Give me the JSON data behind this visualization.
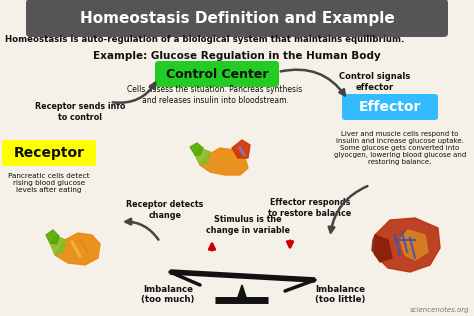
{
  "title": "Homeostasis Definition and Example",
  "title_bg": "#555555",
  "title_color": "#ffffff",
  "bg_color": "#f5f0e8",
  "subtitle": "Homeostasis is auto-regulation of a biological system that maintains equilibrium.",
  "example_title": "Example: Glucose Regulation in the Human Body",
  "control_center_label": "Control Center",
  "control_center_bg": "#22cc22",
  "control_center_text": "Cells assess the situation. Pancreas synthesis\nand releases insulin into bloodstream.",
  "control_signals_text": "Control signals\neffector",
  "effector_label": "Effector",
  "effector_bg": "#33bbff",
  "effector_text": "Liver and muscle cells respond to\ninsulin and increase glucose uptake.\nSome glucose gets converted into\nglyocgen, lowering blood glucose and\nrestoring balance.",
  "receptor_label": "Receptor",
  "receptor_bg": "#ffff00",
  "receptor_text": "Pancreatic cells detect\nrising blood glucose\nlevels after eating",
  "receptor_sends_text": "Receptor sends info\nto control",
  "receptor_detects_text": "Receptor detects\nchange",
  "effector_responds_text": "Effector responds\nto restore balance",
  "stimulus_text": "Stimulus is the\nchange in variable",
  "imbalance_left": "Imbalance\n(too much)",
  "imbalance_right": "Imbalance\n(too little)",
  "watermark": "sciencenotes.org",
  "arrow_color": "#444444",
  "red_arrow_up": "#cc0000",
  "red_arrow_down": "#cc0000"
}
